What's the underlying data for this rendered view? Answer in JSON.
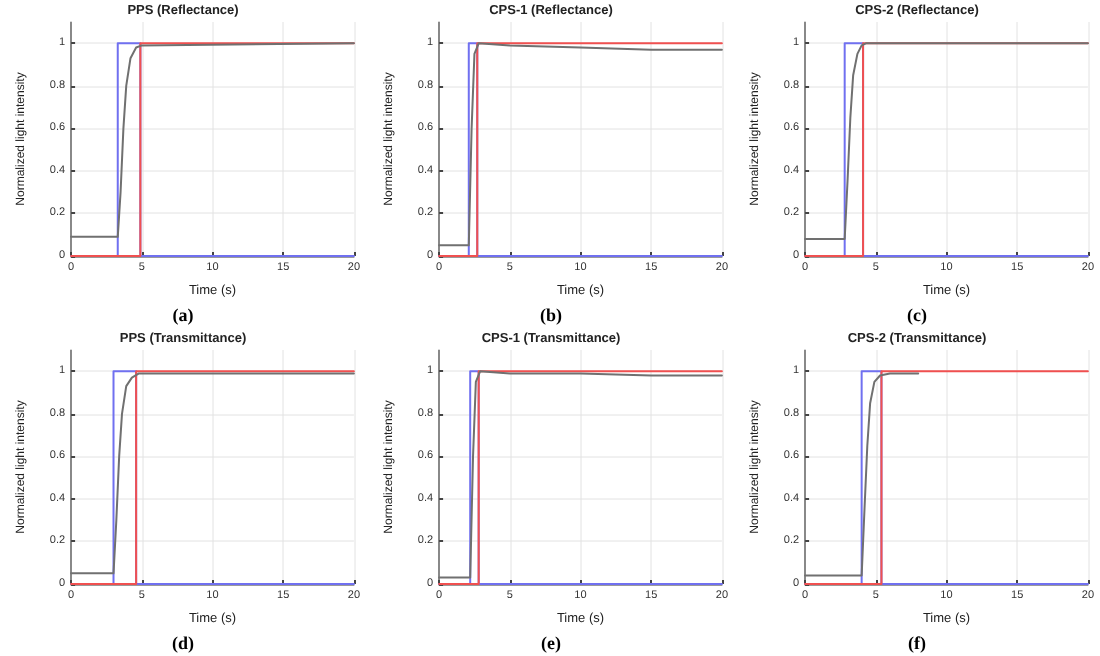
{
  "chart_data": [
    {
      "type": "line",
      "title": "PPS (Reflectance)",
      "xlabel": "Time (s)",
      "ylabel": "Normalized light intensity",
      "annotations": [
        "(a)"
      ],
      "xlim": [
        0,
        20
      ],
      "xticks": [
        0,
        5,
        10,
        15,
        20
      ],
      "ylim": [
        0,
        1.1
      ],
      "yticks": [
        0,
        0.2,
        0.4,
        0.6,
        0.8,
        1
      ],
      "grid": true,
      "marker": "none",
      "line_style": "solid",
      "series": [
        {
          "color": "#7070f0",
          "x": [
            0,
            3.3,
            3.3,
            4.9,
            4.9,
            20
          ],
          "values": [
            0,
            0,
            1,
            1,
            0,
            0
          ]
        },
        {
          "color": "#f05050",
          "x": [
            0,
            4.9,
            4.9,
            20
          ],
          "values": [
            0,
            0,
            1,
            1
          ]
        },
        {
          "color": "#707070",
          "x": [
            0,
            3.3,
            3.5,
            3.7,
            3.9,
            4.2,
            4.6,
            5,
            20
          ],
          "values": [
            0.09,
            0.09,
            0.3,
            0.6,
            0.8,
            0.93,
            0.98,
            0.99,
            1
          ]
        }
      ]
    },
    {
      "type": "line",
      "title": "CPS-1 (Reflectance)",
      "xlabel": "Time (s)",
      "ylabel": "Normalized light intensity",
      "annotations": [
        "(b)"
      ],
      "xlim": [
        0,
        20
      ],
      "xticks": [
        0,
        5,
        10,
        15,
        20
      ],
      "ylim": [
        0,
        1.1
      ],
      "yticks": [
        0,
        0.2,
        0.4,
        0.6,
        0.8,
        1
      ],
      "grid": true,
      "marker": "none",
      "line_style": "solid",
      "series": [
        {
          "color": "#7070f0",
          "x": [
            0,
            2.1,
            2.1,
            2.7,
            2.7,
            20
          ],
          "values": [
            0,
            0,
            1,
            1,
            0,
            0
          ]
        },
        {
          "color": "#f05050",
          "x": [
            0,
            2.7,
            2.7,
            20
          ],
          "values": [
            0,
            0,
            1,
            1
          ]
        },
        {
          "color": "#707070",
          "x": [
            0,
            2.1,
            2.3,
            2.5,
            2.8,
            5,
            10,
            15,
            20
          ],
          "values": [
            0.05,
            0.05,
            0.6,
            0.95,
            1,
            0.99,
            0.98,
            0.97,
            0.97
          ]
        }
      ]
    },
    {
      "type": "line",
      "title": "CPS-2 (Reflectance)",
      "xlabel": "Time (s)",
      "ylabel": "Normalized light intensity",
      "annotations": [
        "(c)"
      ],
      "xlim": [
        0,
        20
      ],
      "xticks": [
        0,
        5,
        10,
        15,
        20
      ],
      "ylim": [
        0,
        1.1
      ],
      "yticks": [
        0,
        0.2,
        0.4,
        0.6,
        0.8,
        1
      ],
      "grid": true,
      "marker": "none",
      "line_style": "solid",
      "series": [
        {
          "color": "#7070f0",
          "x": [
            0,
            2.8,
            2.8,
            4.1,
            4.1,
            20
          ],
          "values": [
            0,
            0,
            1,
            1,
            0,
            0
          ]
        },
        {
          "color": "#f05050",
          "x": [
            0,
            4.1,
            4.1,
            20
          ],
          "values": [
            0,
            0,
            1,
            1
          ]
        },
        {
          "color": "#707070",
          "x": [
            0,
            2.8,
            3,
            3.2,
            3.4,
            3.7,
            4,
            4.3,
            20
          ],
          "values": [
            0.08,
            0.08,
            0.35,
            0.65,
            0.85,
            0.95,
            0.99,
            1,
            1
          ]
        }
      ]
    },
    {
      "type": "line",
      "title": "PPS (Transmittance)",
      "xlabel": "Time (s)",
      "ylabel": "Normalized light intensity",
      "annotations": [
        "(d)"
      ],
      "xlim": [
        0,
        20
      ],
      "xticks": [
        0,
        5,
        10,
        15,
        20
      ],
      "ylim": [
        0,
        1.1
      ],
      "yticks": [
        0,
        0.2,
        0.4,
        0.6,
        0.8,
        1
      ],
      "grid": true,
      "marker": "none",
      "line_style": "solid",
      "series": [
        {
          "color": "#7070f0",
          "x": [
            0,
            3,
            3,
            4.6,
            4.6,
            20
          ],
          "values": [
            0,
            0,
            1,
            1,
            0,
            0
          ]
        },
        {
          "color": "#f05050",
          "x": [
            0,
            4.6,
            4.6,
            20
          ],
          "values": [
            0,
            0,
            1,
            1
          ]
        },
        {
          "color": "#707070",
          "x": [
            0,
            3,
            3.2,
            3.4,
            3.6,
            3.9,
            4.3,
            4.8,
            20
          ],
          "values": [
            0.05,
            0.05,
            0.3,
            0.6,
            0.8,
            0.93,
            0.97,
            0.99,
            0.99
          ]
        }
      ]
    },
    {
      "type": "line",
      "title": "CPS-1 (Transmittance)",
      "xlabel": "Time (s)",
      "ylabel": "Normalized light intensity",
      "annotations": [
        "(e)"
      ],
      "xlim": [
        0,
        20
      ],
      "xticks": [
        0,
        5,
        10,
        15,
        20
      ],
      "ylim": [
        0,
        1.1
      ],
      "yticks": [
        0,
        0.2,
        0.4,
        0.6,
        0.8,
        1
      ],
      "grid": true,
      "marker": "none",
      "line_style": "solid",
      "series": [
        {
          "color": "#7070f0",
          "x": [
            0,
            2.2,
            2.2,
            2.8,
            2.8,
            20
          ],
          "values": [
            0,
            0,
            1,
            1,
            0,
            0
          ]
        },
        {
          "color": "#f05050",
          "x": [
            0,
            2.8,
            2.8,
            20
          ],
          "values": [
            0,
            0,
            1,
            1
          ]
        },
        {
          "color": "#707070",
          "x": [
            0,
            2.2,
            2.4,
            2.6,
            2.9,
            5,
            10,
            15,
            20
          ],
          "values": [
            0.03,
            0.03,
            0.6,
            0.95,
            1,
            0.99,
            0.99,
            0.98,
            0.98
          ]
        }
      ]
    },
    {
      "type": "line",
      "title": "CPS-2 (Transmittance)",
      "xlabel": "Time (s)",
      "ylabel": "Normalized light intensity",
      "annotations": [
        "(f)"
      ],
      "xlim": [
        0,
        20
      ],
      "xticks": [
        0,
        5,
        10,
        15,
        20
      ],
      "ylim": [
        0,
        1.1
      ],
      "yticks": [
        0,
        0.2,
        0.4,
        0.6,
        0.8,
        1
      ],
      "grid": true,
      "marker": "none",
      "line_style": "solid",
      "series": [
        {
          "color": "#7070f0",
          "x": [
            0,
            4,
            4,
            5.4,
            5.4,
            20
          ],
          "values": [
            0,
            0,
            1,
            1,
            0,
            0
          ]
        },
        {
          "color": "#f05050",
          "x": [
            0,
            5.4,
            5.4,
            20
          ],
          "values": [
            0,
            0,
            1,
            1
          ]
        },
        {
          "color": "#707070",
          "x": [
            0,
            4,
            4.2,
            4.4,
            4.6,
            4.9,
            5.3,
            6,
            8
          ],
          "values": [
            0.04,
            0.04,
            0.35,
            0.65,
            0.85,
            0.95,
            0.98,
            0.99,
            0.99
          ]
        }
      ]
    }
  ]
}
